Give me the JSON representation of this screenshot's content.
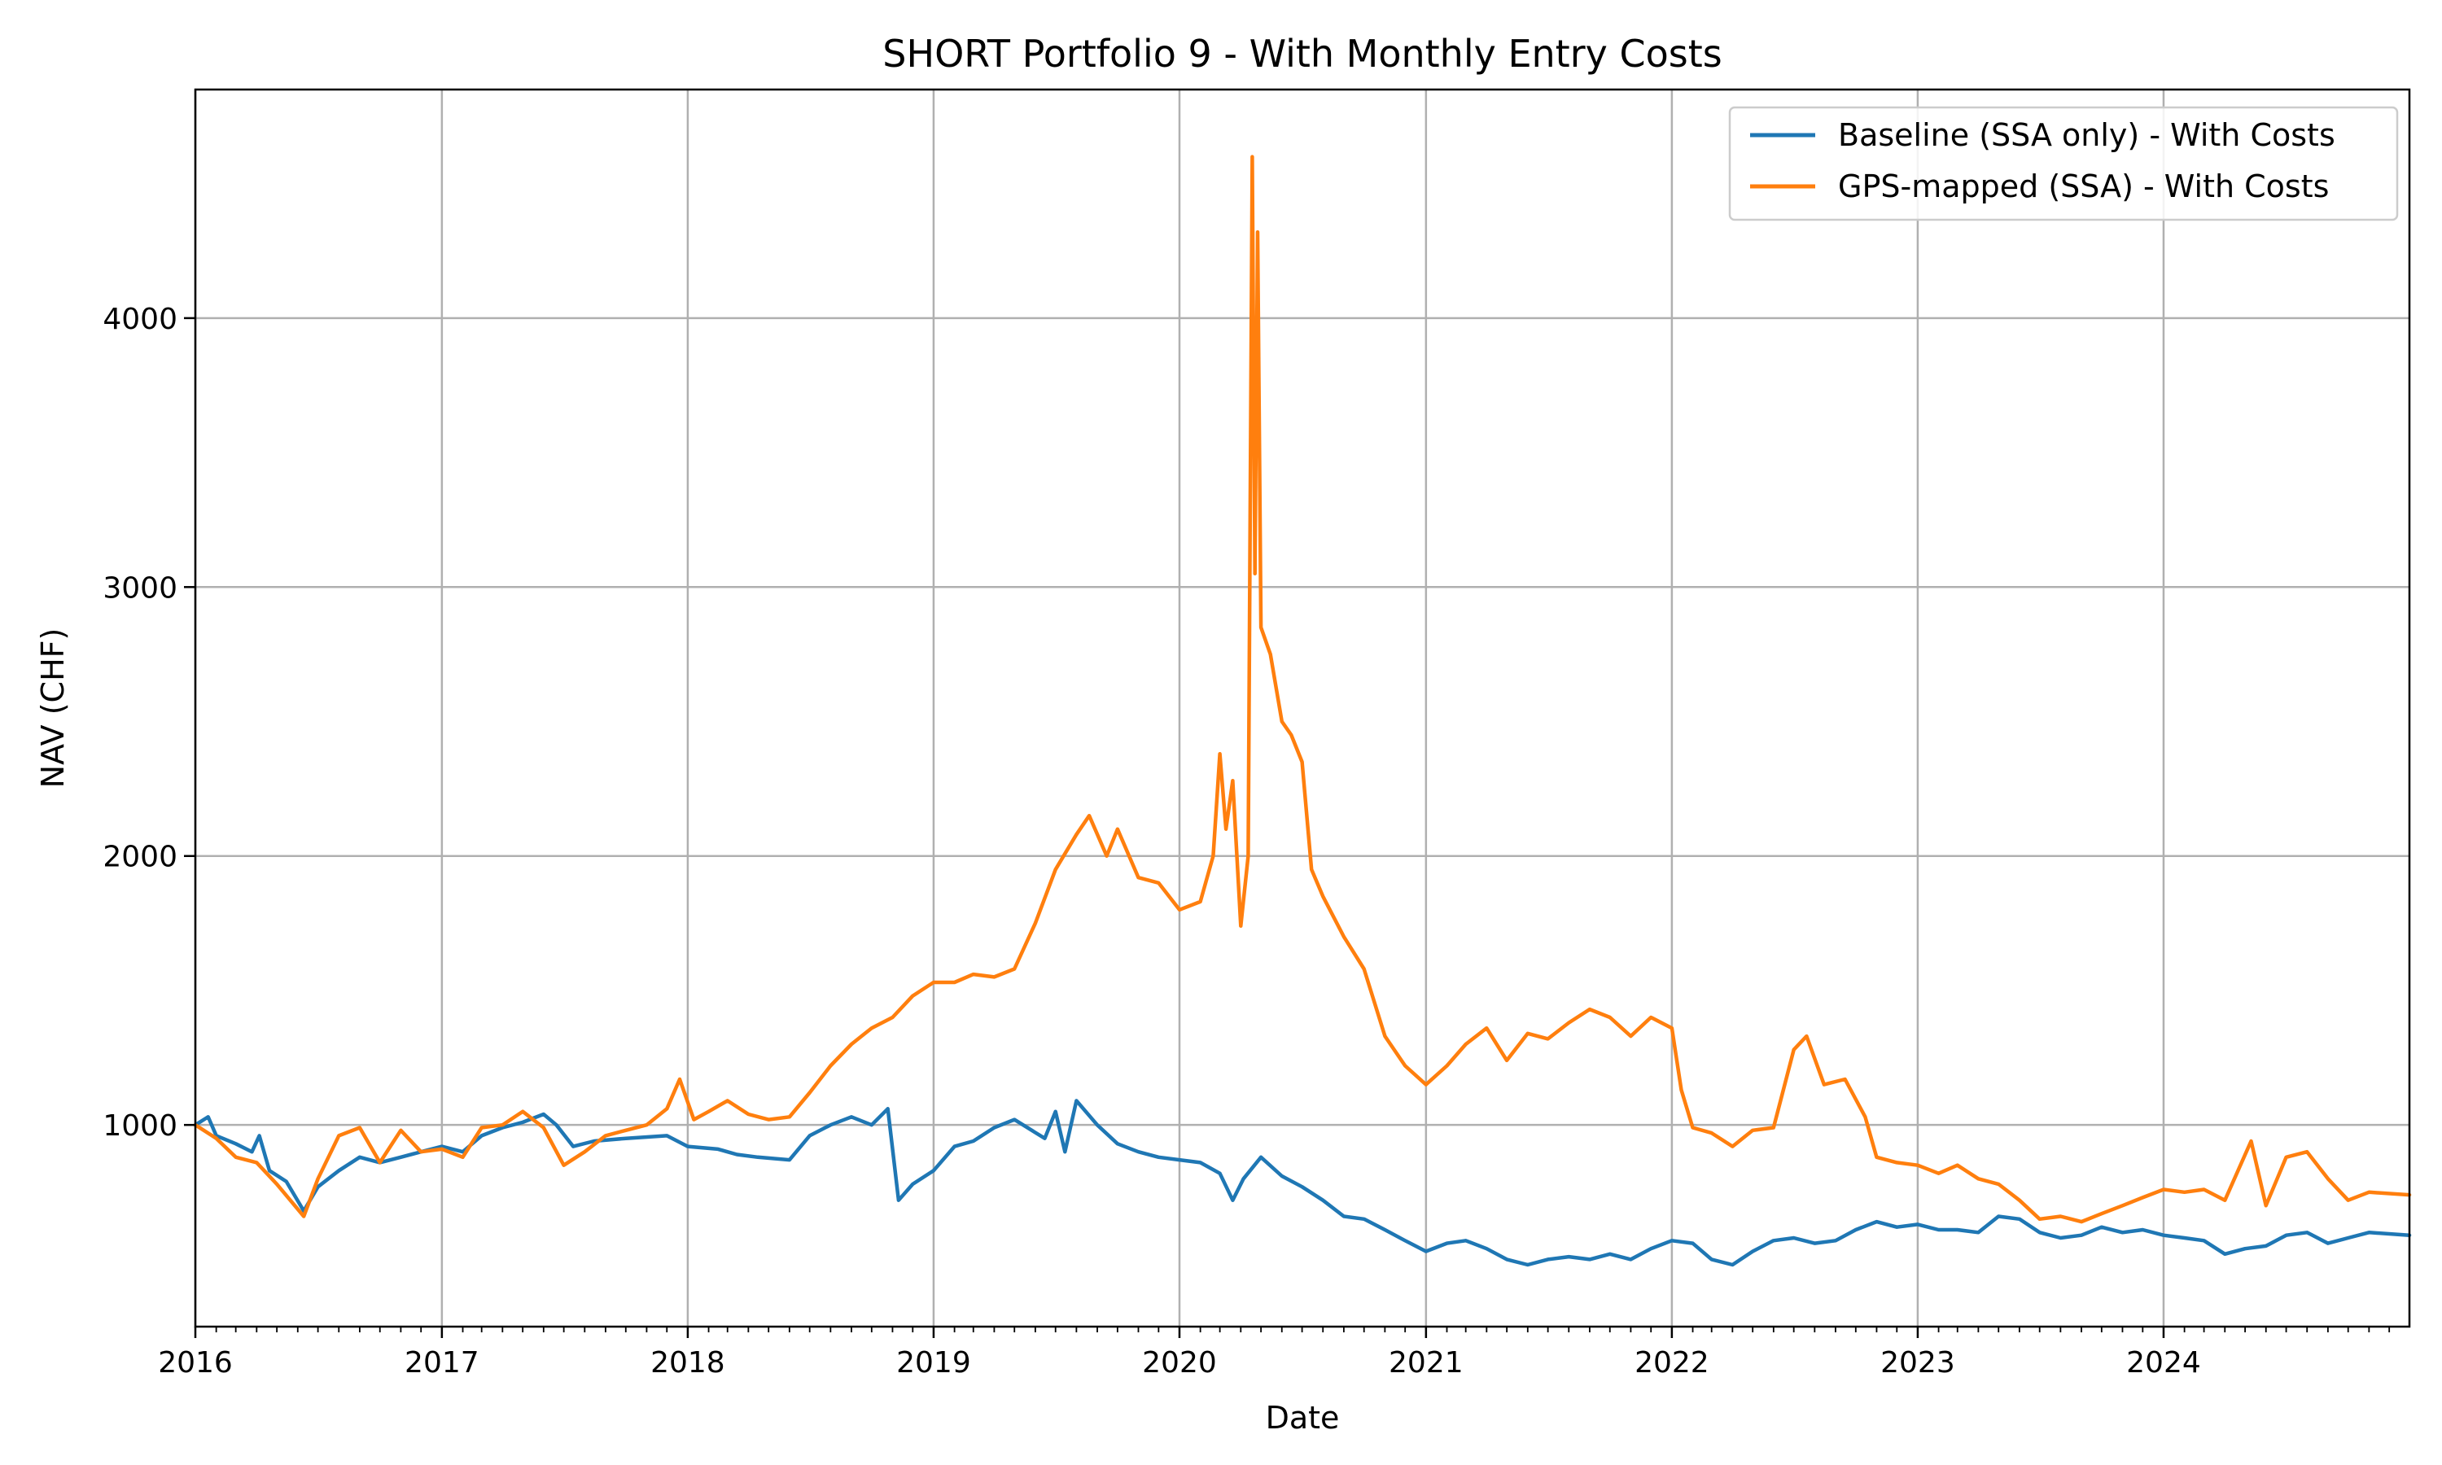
{
  "chart_data": {
    "type": "line",
    "title": "SHORT Portfolio 9 - With Monthly Entry Costs",
    "xlabel": "Date",
    "ylabel": "NAV (CHF)",
    "xlim": [
      "2016-01-01",
      "2024-12-31"
    ],
    "ylim": [
      250,
      4850
    ],
    "x_ticks": [
      "2016",
      "2017",
      "2018",
      "2019",
      "2020",
      "2021",
      "2022",
      "2023",
      "2024"
    ],
    "y_ticks": [
      1000,
      2000,
      3000,
      4000
    ],
    "grid": true,
    "legend": {
      "position": "top-right"
    },
    "series": [
      {
        "name": "Baseline (SSA only) - With Costs",
        "color": "#1f77b4",
        "points": [
          [
            "2016-01-01",
            1000
          ],
          [
            "2016-01-20",
            1030
          ],
          [
            "2016-02-01",
            960
          ],
          [
            "2016-03-01",
            930
          ],
          [
            "2016-03-25",
            900
          ],
          [
            "2016-04-05",
            960
          ],
          [
            "2016-04-20",
            830
          ],
          [
            "2016-05-15",
            790
          ],
          [
            "2016-06-10",
            680
          ],
          [
            "2016-07-01",
            770
          ],
          [
            "2016-08-01",
            830
          ],
          [
            "2016-09-01",
            880
          ],
          [
            "2016-10-01",
            860
          ],
          [
            "2016-11-01",
            880
          ],
          [
            "2016-12-01",
            900
          ],
          [
            "2017-01-01",
            920
          ],
          [
            "2017-02-01",
            900
          ],
          [
            "2017-03-01",
            960
          ],
          [
            "2017-04-01",
            990
          ],
          [
            "2017-05-01",
            1010
          ],
          [
            "2017-06-01",
            1040
          ],
          [
            "2017-06-20",
            1000
          ],
          [
            "2017-07-15",
            920
          ],
          [
            "2017-08-15",
            940
          ],
          [
            "2017-10-01",
            950
          ],
          [
            "2017-12-01",
            960
          ],
          [
            "2018-01-01",
            920
          ],
          [
            "2018-02-15",
            910
          ],
          [
            "2018-03-15",
            890
          ],
          [
            "2018-04-15",
            880
          ],
          [
            "2018-06-01",
            870
          ],
          [
            "2018-07-01",
            960
          ],
          [
            "2018-08-01",
            1000
          ],
          [
            "2018-09-01",
            1030
          ],
          [
            "2018-10-01",
            1000
          ],
          [
            "2018-10-25",
            1060
          ],
          [
            "2018-11-10",
            720
          ],
          [
            "2018-12-01",
            780
          ],
          [
            "2019-01-01",
            830
          ],
          [
            "2019-02-01",
            920
          ],
          [
            "2019-03-01",
            940
          ],
          [
            "2019-04-01",
            990
          ],
          [
            "2019-05-01",
            1020
          ],
          [
            "2019-06-15",
            950
          ],
          [
            "2019-07-01",
            1050
          ],
          [
            "2019-07-15",
            900
          ],
          [
            "2019-08-01",
            1090
          ],
          [
            "2019-09-01",
            1000
          ],
          [
            "2019-10-01",
            930
          ],
          [
            "2019-11-01",
            900
          ],
          [
            "2019-12-01",
            880
          ],
          [
            "2020-01-01",
            870
          ],
          [
            "2020-02-01",
            860
          ],
          [
            "2020-03-01",
            820
          ],
          [
            "2020-03-20",
            720
          ],
          [
            "2020-04-05",
            800
          ],
          [
            "2020-05-01",
            880
          ],
          [
            "2020-06-01",
            810
          ],
          [
            "2020-07-01",
            770
          ],
          [
            "2020-08-01",
            720
          ],
          [
            "2020-09-01",
            660
          ],
          [
            "2020-10-01",
            650
          ],
          [
            "2020-11-01",
            610
          ],
          [
            "2020-12-01",
            570
          ],
          [
            "2021-01-01",
            530
          ],
          [
            "2021-02-01",
            560
          ],
          [
            "2021-03-01",
            570
          ],
          [
            "2021-04-01",
            540
          ],
          [
            "2021-05-01",
            500
          ],
          [
            "2021-06-01",
            480
          ],
          [
            "2021-07-01",
            500
          ],
          [
            "2021-08-01",
            510
          ],
          [
            "2021-09-01",
            500
          ],
          [
            "2021-10-01",
            520
          ],
          [
            "2021-11-01",
            500
          ],
          [
            "2021-12-01",
            540
          ],
          [
            "2022-01-01",
            570
          ],
          [
            "2022-02-01",
            560
          ],
          [
            "2022-03-01",
            500
          ],
          [
            "2022-04-01",
            480
          ],
          [
            "2022-05-01",
            530
          ],
          [
            "2022-06-01",
            570
          ],
          [
            "2022-07-01",
            580
          ],
          [
            "2022-08-01",
            560
          ],
          [
            "2022-09-01",
            570
          ],
          [
            "2022-10-01",
            610
          ],
          [
            "2022-11-01",
            640
          ],
          [
            "2022-12-01",
            620
          ],
          [
            "2023-01-01",
            630
          ],
          [
            "2023-02-01",
            610
          ],
          [
            "2023-03-01",
            610
          ],
          [
            "2023-04-01",
            600
          ],
          [
            "2023-05-01",
            660
          ],
          [
            "2023-06-01",
            650
          ],
          [
            "2023-07-01",
            600
          ],
          [
            "2023-08-01",
            580
          ],
          [
            "2023-09-01",
            590
          ],
          [
            "2023-10-01",
            620
          ],
          [
            "2023-11-01",
            600
          ],
          [
            "2023-12-01",
            610
          ],
          [
            "2024-01-01",
            590
          ],
          [
            "2024-02-01",
            580
          ],
          [
            "2024-03-01",
            570
          ],
          [
            "2024-04-01",
            520
          ],
          [
            "2024-05-01",
            540
          ],
          [
            "2024-06-01",
            550
          ],
          [
            "2024-07-01",
            590
          ],
          [
            "2024-08-01",
            600
          ],
          [
            "2024-09-01",
            560
          ],
          [
            "2024-10-01",
            580
          ],
          [
            "2024-11-01",
            600
          ],
          [
            "2024-12-31",
            590
          ]
        ]
      },
      {
        "name": "GPS-mapped (SSA) - With Costs",
        "color": "#ff7f0e",
        "points": [
          [
            "2016-01-01",
            1000
          ],
          [
            "2016-02-01",
            950
          ],
          [
            "2016-03-01",
            880
          ],
          [
            "2016-04-01",
            860
          ],
          [
            "2016-05-01",
            780
          ],
          [
            "2016-06-10",
            660
          ],
          [
            "2016-07-01",
            800
          ],
          [
            "2016-08-01",
            960
          ],
          [
            "2016-09-01",
            990
          ],
          [
            "2016-10-01",
            860
          ],
          [
            "2016-11-01",
            980
          ],
          [
            "2016-12-01",
            900
          ],
          [
            "2017-01-01",
            910
          ],
          [
            "2017-02-01",
            880
          ],
          [
            "2017-03-01",
            990
          ],
          [
            "2017-04-01",
            1000
          ],
          [
            "2017-05-01",
            1050
          ],
          [
            "2017-06-01",
            990
          ],
          [
            "2017-07-01",
            850
          ],
          [
            "2017-08-01",
            900
          ],
          [
            "2017-09-01",
            960
          ],
          [
            "2017-10-01",
            980
          ],
          [
            "2017-11-01",
            1000
          ],
          [
            "2017-12-01",
            1060
          ],
          [
            "2017-12-20",
            1170
          ],
          [
            "2018-01-10",
            1020
          ],
          [
            "2018-02-01",
            1050
          ],
          [
            "2018-03-01",
            1090
          ],
          [
            "2018-04-01",
            1040
          ],
          [
            "2018-05-01",
            1020
          ],
          [
            "2018-06-01",
            1030
          ],
          [
            "2018-07-01",
            1120
          ],
          [
            "2018-08-01",
            1220
          ],
          [
            "2018-09-01",
            1300
          ],
          [
            "2018-10-01",
            1360
          ],
          [
            "2018-11-01",
            1400
          ],
          [
            "2018-12-01",
            1480
          ],
          [
            "2019-01-01",
            1530
          ],
          [
            "2019-02-01",
            1530
          ],
          [
            "2019-03-01",
            1560
          ],
          [
            "2019-04-01",
            1550
          ],
          [
            "2019-05-01",
            1580
          ],
          [
            "2019-06-01",
            1750
          ],
          [
            "2019-07-01",
            1950
          ],
          [
            "2019-08-01",
            2080
          ],
          [
            "2019-08-20",
            2150
          ],
          [
            "2019-09-15",
            2000
          ],
          [
            "2019-10-01",
            2100
          ],
          [
            "2019-11-01",
            1920
          ],
          [
            "2019-12-01",
            1900
          ],
          [
            "2020-01-01",
            1800
          ],
          [
            "2020-02-01",
            1830
          ],
          [
            "2020-02-20",
            2000
          ],
          [
            "2020-03-01",
            2380
          ],
          [
            "2020-03-10",
            2100
          ],
          [
            "2020-03-20",
            2280
          ],
          [
            "2020-04-01",
            1740
          ],
          [
            "2020-04-12",
            2000
          ],
          [
            "2020-04-18",
            4600
          ],
          [
            "2020-04-22",
            3050
          ],
          [
            "2020-04-26",
            4320
          ],
          [
            "2020-05-01",
            2850
          ],
          [
            "2020-05-15",
            2750
          ],
          [
            "2020-06-01",
            2500
          ],
          [
            "2020-06-15",
            2450
          ],
          [
            "2020-07-01",
            2350
          ],
          [
            "2020-07-15",
            1950
          ],
          [
            "2020-08-01",
            1850
          ],
          [
            "2020-09-01",
            1700
          ],
          [
            "2020-10-01",
            1580
          ],
          [
            "2020-11-01",
            1330
          ],
          [
            "2020-12-01",
            1220
          ],
          [
            "2021-01-01",
            1150
          ],
          [
            "2021-02-01",
            1220
          ],
          [
            "2021-03-01",
            1300
          ],
          [
            "2021-04-01",
            1360
          ],
          [
            "2021-05-01",
            1240
          ],
          [
            "2021-06-01",
            1340
          ],
          [
            "2021-07-01",
            1320
          ],
          [
            "2021-08-01",
            1380
          ],
          [
            "2021-09-01",
            1430
          ],
          [
            "2021-10-01",
            1400
          ],
          [
            "2021-11-01",
            1330
          ],
          [
            "2021-12-01",
            1400
          ],
          [
            "2022-01-01",
            1360
          ],
          [
            "2022-01-15",
            1130
          ],
          [
            "2022-02-01",
            990
          ],
          [
            "2022-03-01",
            970
          ],
          [
            "2022-04-01",
            920
          ],
          [
            "2022-05-01",
            980
          ],
          [
            "2022-06-01",
            990
          ],
          [
            "2022-07-01",
            1280
          ],
          [
            "2022-07-20",
            1330
          ],
          [
            "2022-08-15",
            1150
          ],
          [
            "2022-09-15",
            1170
          ],
          [
            "2022-10-15",
            1030
          ],
          [
            "2022-11-01",
            880
          ],
          [
            "2022-12-01",
            860
          ],
          [
            "2023-01-01",
            850
          ],
          [
            "2023-02-01",
            820
          ],
          [
            "2023-03-01",
            850
          ],
          [
            "2023-04-01",
            800
          ],
          [
            "2023-05-01",
            780
          ],
          [
            "2023-06-01",
            720
          ],
          [
            "2023-07-01",
            650
          ],
          [
            "2023-08-01",
            660
          ],
          [
            "2023-09-01",
            640
          ],
          [
            "2023-10-01",
            670
          ],
          [
            "2023-11-01",
            700
          ],
          [
            "2023-12-01",
            730
          ],
          [
            "2024-01-01",
            760
          ],
          [
            "2024-02-01",
            750
          ],
          [
            "2024-03-01",
            760
          ],
          [
            "2024-04-01",
            720
          ],
          [
            "2024-05-10",
            940
          ],
          [
            "2024-06-01",
            700
          ],
          [
            "2024-07-01",
            880
          ],
          [
            "2024-08-01",
            900
          ],
          [
            "2024-09-01",
            800
          ],
          [
            "2024-10-01",
            720
          ],
          [
            "2024-11-01",
            750
          ],
          [
            "2024-12-31",
            740
          ]
        ]
      }
    ]
  }
}
